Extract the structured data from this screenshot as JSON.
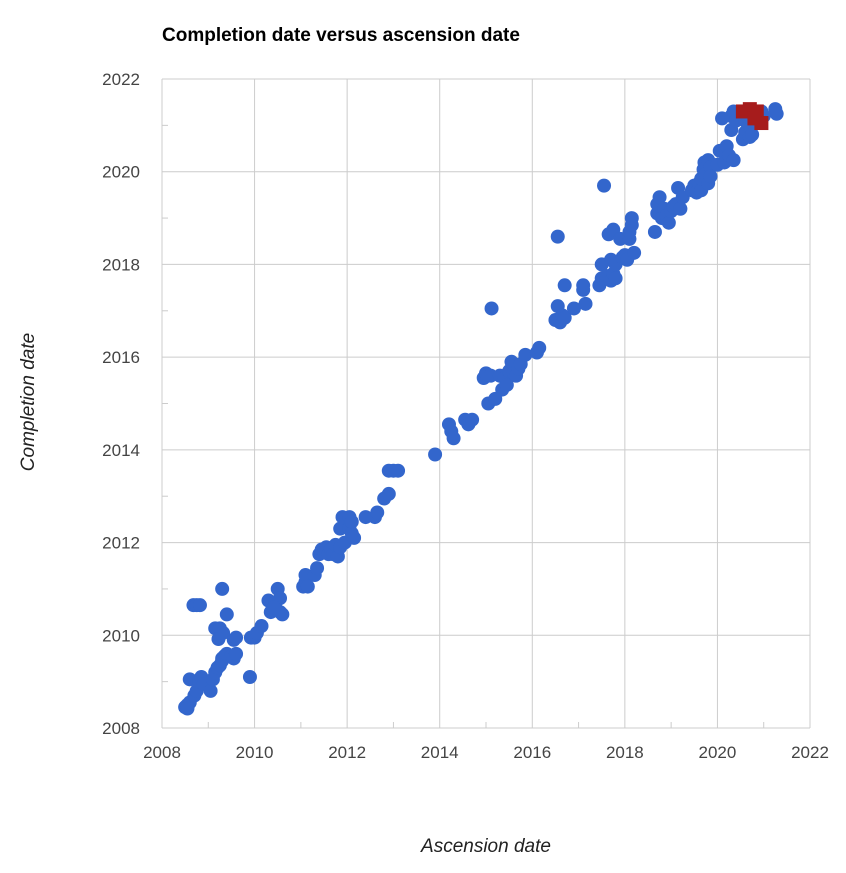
{
  "chart_data": {
    "type": "scatter",
    "title": "Completion date versus ascension date",
    "xlabel": "Ascension date",
    "ylabel": "Completion date",
    "xlim": [
      2008,
      2022
    ],
    "ylim": [
      2008,
      2022
    ],
    "x_ticks": [
      "2008",
      "2010",
      "2012",
      "2014",
      "2016",
      "2018",
      "2020",
      "2022"
    ],
    "y_ticks": [
      "2008",
      "2010",
      "2012",
      "2014",
      "2016",
      "2018",
      "2020",
      "2022"
    ],
    "grid": true,
    "legend": "none",
    "series": [
      {
        "color": "#3366cc",
        "marker": "circle",
        "points": [
          [
            2008.5,
            2008.45
          ],
          [
            2008.55,
            2008.5
          ],
          [
            2008.6,
            2008.55
          ],
          [
            2008.55,
            2008.42
          ],
          [
            2008.6,
            2009.05
          ],
          [
            2008.7,
            2008.7
          ],
          [
            2008.75,
            2008.8
          ],
          [
            2008.8,
            2009.0
          ],
          [
            2008.85,
            2009.1
          ],
          [
            2008.9,
            2008.95
          ],
          [
            2008.68,
            2010.65
          ],
          [
            2008.75,
            2010.65
          ],
          [
            2008.82,
            2010.65
          ],
          [
            2009.05,
            2008.8
          ],
          [
            2009.1,
            2009.05
          ],
          [
            2009.15,
            2009.2
          ],
          [
            2009.2,
            2009.3
          ],
          [
            2009.25,
            2009.35
          ],
          [
            2009.3,
            2009.5
          ],
          [
            2009.35,
            2009.55
          ],
          [
            2009.3,
            2009.45
          ],
          [
            2009.4,
            2009.6
          ],
          [
            2009.15,
            2010.15
          ],
          [
            2009.25,
            2010.15
          ],
          [
            2009.32,
            2010.05
          ],
          [
            2009.22,
            2009.92
          ],
          [
            2009.3,
            2011.0
          ],
          [
            2009.4,
            2010.45
          ],
          [
            2009.5,
            2009.55
          ],
          [
            2009.55,
            2009.5
          ],
          [
            2009.6,
            2009.6
          ],
          [
            2009.55,
            2009.9
          ],
          [
            2009.6,
            2009.95
          ],
          [
            2009.9,
            2009.1
          ],
          [
            2009.92,
            2009.95
          ],
          [
            2010.0,
            2009.95
          ],
          [
            2010.05,
            2010.05
          ],
          [
            2010.15,
            2010.2
          ],
          [
            2010.3,
            2010.75
          ],
          [
            2010.35,
            2010.5
          ],
          [
            2010.4,
            2010.55
          ],
          [
            2010.45,
            2010.7
          ],
          [
            2010.5,
            2011.0
          ],
          [
            2010.55,
            2010.8
          ],
          [
            2010.55,
            2010.5
          ],
          [
            2010.6,
            2010.45
          ],
          [
            2010.42,
            2010.6
          ],
          [
            2011.05,
            2011.05
          ],
          [
            2011.1,
            2011.15
          ],
          [
            2011.1,
            2011.3
          ],
          [
            2011.15,
            2011.05
          ],
          [
            2011.3,
            2011.3
          ],
          [
            2011.35,
            2011.45
          ],
          [
            2011.4,
            2011.75
          ],
          [
            2011.45,
            2011.85
          ],
          [
            2011.5,
            2011.8
          ],
          [
            2011.55,
            2011.9
          ],
          [
            2011.6,
            2011.75
          ],
          [
            2011.65,
            2011.85
          ],
          [
            2011.7,
            2011.75
          ],
          [
            2011.75,
            2011.95
          ],
          [
            2011.8,
            2011.7
          ],
          [
            2011.85,
            2011.9
          ],
          [
            2011.85,
            2012.3
          ],
          [
            2011.9,
            2012.55
          ],
          [
            2011.95,
            2012.0
          ],
          [
            2012.05,
            2012.3
          ],
          [
            2012.05,
            2012.55
          ],
          [
            2012.1,
            2012.2
          ],
          [
            2012.15,
            2012.1
          ],
          [
            2012.1,
            2012.45
          ],
          [
            2012.4,
            2012.55
          ],
          [
            2012.6,
            2012.55
          ],
          [
            2012.65,
            2012.65
          ],
          [
            2012.8,
            2012.95
          ],
          [
            2012.9,
            2013.05
          ],
          [
            2012.9,
            2013.55
          ],
          [
            2013.0,
            2013.55
          ],
          [
            2013.1,
            2013.55
          ],
          [
            2013.9,
            2013.9
          ],
          [
            2014.2,
            2014.55
          ],
          [
            2014.25,
            2014.4
          ],
          [
            2014.3,
            2014.25
          ],
          [
            2014.55,
            2014.65
          ],
          [
            2014.62,
            2014.55
          ],
          [
            2014.7,
            2014.65
          ],
          [
            2014.95,
            2015.55
          ],
          [
            2015.0,
            2015.65
          ],
          [
            2015.05,
            2015.0
          ],
          [
            2015.1,
            2015.6
          ],
          [
            2015.12,
            2017.05
          ],
          [
            2015.2,
            2015.1
          ],
          [
            2015.3,
            2015.6
          ],
          [
            2015.35,
            2015.3
          ],
          [
            2015.4,
            2015.55
          ],
          [
            2015.45,
            2015.4
          ],
          [
            2015.5,
            2015.7
          ],
          [
            2015.55,
            2015.9
          ],
          [
            2015.6,
            2015.65
          ],
          [
            2015.65,
            2015.6
          ],
          [
            2015.7,
            2015.75
          ],
          [
            2015.75,
            2015.85
          ],
          [
            2015.85,
            2016.05
          ],
          [
            2016.1,
            2016.1
          ],
          [
            2016.15,
            2016.2
          ],
          [
            2016.5,
            2016.8
          ],
          [
            2016.55,
            2018.6
          ],
          [
            2016.55,
            2017.1
          ],
          [
            2016.6,
            2016.75
          ],
          [
            2016.65,
            2016.9
          ],
          [
            2016.7,
            2017.55
          ],
          [
            2016.7,
            2016.85
          ],
          [
            2016.9,
            2017.05
          ],
          [
            2017.1,
            2017.45
          ],
          [
            2017.1,
            2017.55
          ],
          [
            2017.15,
            2017.15
          ],
          [
            2017.45,
            2017.55
          ],
          [
            2017.5,
            2017.7
          ],
          [
            2017.5,
            2018.0
          ],
          [
            2017.55,
            2019.7
          ],
          [
            2017.6,
            2017.75
          ],
          [
            2017.65,
            2018.65
          ],
          [
            2017.7,
            2017.65
          ],
          [
            2017.7,
            2018.1
          ],
          [
            2017.75,
            2017.8
          ],
          [
            2017.75,
            2018.75
          ],
          [
            2017.8,
            2018.0
          ],
          [
            2017.8,
            2017.7
          ],
          [
            2017.9,
            2018.55
          ],
          [
            2017.95,
            2018.15
          ],
          [
            2018.0,
            2018.2
          ],
          [
            2018.05,
            2018.1
          ],
          [
            2018.1,
            2018.55
          ],
          [
            2018.1,
            2018.7
          ],
          [
            2018.15,
            2018.85
          ],
          [
            2018.15,
            2019.0
          ],
          [
            2018.2,
            2018.25
          ],
          [
            2018.65,
            2018.7
          ],
          [
            2018.7,
            2019.1
          ],
          [
            2018.7,
            2019.3
          ],
          [
            2018.75,
            2019.45
          ],
          [
            2018.8,
            2019.0
          ],
          [
            2018.85,
            2019.2
          ],
          [
            2018.9,
            2019.05
          ],
          [
            2018.95,
            2018.9
          ],
          [
            2019.0,
            2019.15
          ],
          [
            2019.05,
            2019.25
          ],
          [
            2019.1,
            2019.3
          ],
          [
            2019.15,
            2019.65
          ],
          [
            2019.2,
            2019.2
          ],
          [
            2019.25,
            2019.45
          ],
          [
            2019.45,
            2019.6
          ],
          [
            2019.5,
            2019.7
          ],
          [
            2019.55,
            2019.55
          ],
          [
            2019.6,
            2019.75
          ],
          [
            2019.65,
            2019.6
          ],
          [
            2019.65,
            2019.85
          ],
          [
            2019.7,
            2020.05
          ],
          [
            2019.72,
            2020.2
          ],
          [
            2019.75,
            2019.95
          ],
          [
            2019.8,
            2020.25
          ],
          [
            2019.8,
            2019.75
          ],
          [
            2019.85,
            2020.1
          ],
          [
            2019.85,
            2019.9
          ],
          [
            2020.0,
            2020.15
          ],
          [
            2020.05,
            2020.45
          ],
          [
            2020.1,
            2021.15
          ],
          [
            2020.15,
            2020.2
          ],
          [
            2020.2,
            2020.55
          ],
          [
            2020.25,
            2020.35
          ],
          [
            2020.3,
            2021.2
          ],
          [
            2020.3,
            2020.9
          ],
          [
            2020.35,
            2021.3
          ],
          [
            2020.35,
            2020.25
          ],
          [
            2020.4,
            2021.1
          ],
          [
            2020.5,
            2021.25
          ],
          [
            2020.55,
            2020.7
          ],
          [
            2020.6,
            2020.85
          ],
          [
            2020.6,
            2021.1
          ],
          [
            2020.65,
            2021.2
          ],
          [
            2020.7,
            2021.0
          ],
          [
            2020.7,
            2020.75
          ],
          [
            2020.75,
            2021.3
          ],
          [
            2020.75,
            2020.8
          ],
          [
            2020.8,
            2021.2
          ],
          [
            2020.85,
            2021.25
          ],
          [
            2020.9,
            2021.15
          ],
          [
            2020.95,
            2021.3
          ],
          [
            2021.0,
            2021.2
          ],
          [
            2021.25,
            2021.35
          ],
          [
            2021.28,
            2021.25
          ]
        ]
      },
      {
        "color": "#a61c1c",
        "marker": "square",
        "points": [
          [
            2020.55,
            2021.3
          ],
          [
            2020.7,
            2021.35
          ],
          [
            2020.85,
            2021.3
          ],
          [
            2020.95,
            2021.05
          ],
          [
            2020.8,
            2021.15
          ]
        ]
      }
    ]
  }
}
